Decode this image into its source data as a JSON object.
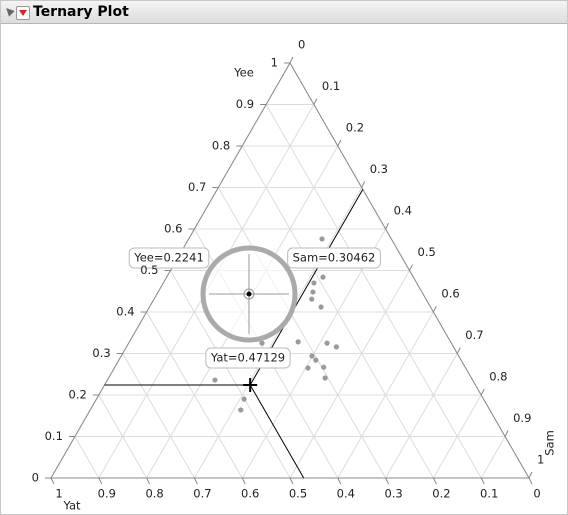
{
  "chart_data": {
    "type": "ternary",
    "title": "Ternary Plot",
    "components": [
      {
        "name": "Yat",
        "values": [
          0.145,
          0.189,
          0.215,
          0.228,
          0.239,
          0.229,
          0.319,
          0.26,
          0.245,
          0.307,
          0.304,
          0.296,
          0.306,
          0.33,
          0.396,
          0.539,
          0.501,
          0.521
        ]
      },
      {
        "name": "Yee",
        "values": [
          0.576,
          0.484,
          0.47,
          0.448,
          0.431,
          0.412,
          0.328,
          0.325,
          0.316,
          0.294,
          0.284,
          0.267,
          0.241,
          0.265,
          0.325,
          0.236,
          0.19,
          0.164
        ]
      },
      {
        "name": "Sam",
        "values": [
          0.279,
          0.327,
          0.315,
          0.324,
          0.33,
          0.359,
          0.353,
          0.415,
          0.439,
          0.399,
          0.412,
          0.437,
          0.453,
          0.405,
          0.279,
          0.225,
          0.309,
          0.315
        ]
      }
    ],
    "ticks": [
      0,
      0.1,
      0.2,
      0.3,
      0.4,
      0.5,
      0.6,
      0.7,
      0.8,
      0.9,
      1
    ],
    "crosshair": {
      "values": [
        0.47129,
        0.2241,
        0.30462
      ],
      "value_labels": [
        "Yat=0.47129",
        "Yee=0.2241",
        "Sam=0.30462"
      ]
    },
    "point_color": "#9a9a9a",
    "grid": true
  }
}
